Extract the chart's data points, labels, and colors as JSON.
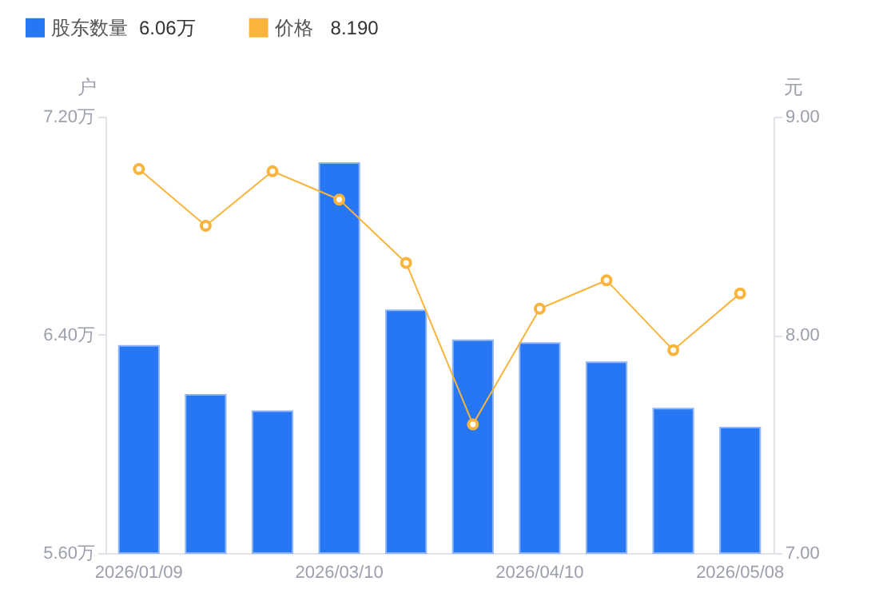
{
  "chart_data": {
    "type": "bar",
    "categories": [
      "2026/01/09",
      null,
      null,
      "2026/03/10",
      null,
      null,
      "2026/04/10",
      null,
      null,
      "2026/05/08"
    ],
    "series": [
      {
        "name": "股东数量",
        "color": "#2777f5",
        "values": [
          6.36,
          6.18,
          6.12,
          7.03,
          6.49,
          6.38,
          6.37,
          6.3,
          6.13,
          6.06
        ]
      },
      {
        "name": "价格",
        "type": "line",
        "axis": "y2",
        "color": "#f9b43c",
        "values": [
          8.76,
          8.5,
          8.75,
          8.62,
          8.33,
          7.59,
          8.12,
          8.25,
          7.93,
          8.19
        ]
      }
    ],
    "ylabel": "户",
    "y2label": "元",
    "ylim": [
      5.6,
      7.2
    ],
    "yticks": [
      {
        "value": 5.6,
        "label": "5.60万"
      },
      {
        "value": 6.4,
        "label": "6.40万"
      },
      {
        "value": 7.2,
        "label": "7.20万"
      }
    ],
    "y2lim": [
      7,
      9
    ],
    "y2ticks": [
      {
        "value": 7,
        "label": "7.00"
      },
      {
        "value": 8,
        "label": "8.00"
      },
      {
        "value": 9,
        "label": "9.00"
      }
    ],
    "legend": "top left",
    "marker": "circle",
    "line_style": "solid",
    "annotations": [
      "6.06万",
      "8.190"
    ]
  }
}
